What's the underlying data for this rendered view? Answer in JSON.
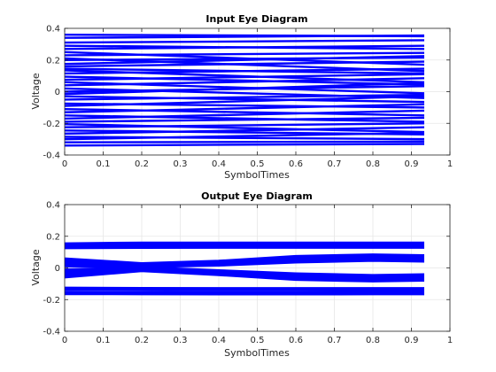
{
  "chart_data": [
    {
      "type": "line",
      "title": "Input Eye Diagram",
      "xlabel": "SymbolTimes",
      "ylabel": "Voltage",
      "xlim": [
        0,
        1
      ],
      "ylim": [
        -0.4,
        0.4
      ],
      "xticks": [
        "0",
        "0.1",
        "0.2",
        "0.3",
        "0.4",
        "0.5",
        "0.6",
        "0.7",
        "0.8",
        "0.9",
        "1"
      ],
      "yticks": [
        "0.4",
        "0.2",
        "0",
        "-0.2",
        "-0.4"
      ],
      "grid": true,
      "line_color": "#0000ff",
      "x": [
        0,
        0.9333
      ],
      "series": [
        {
          "values": [
            0.36,
            0.35
          ]
        },
        {
          "values": [
            0.34,
            0.355
          ]
        },
        {
          "values": [
            0.31,
            0.325
          ]
        },
        {
          "values": [
            0.29,
            0.27
          ]
        },
        {
          "values": [
            0.27,
            0.29
          ]
        },
        {
          "values": [
            0.25,
            0.17
          ]
        },
        {
          "values": [
            0.23,
            0.245
          ]
        },
        {
          "values": [
            0.21,
            0.13
          ]
        },
        {
          "values": [
            0.2,
            0.215
          ]
        },
        {
          "values": [
            0.175,
            0.225
          ]
        },
        {
          "values": [
            0.16,
            0.19
          ]
        },
        {
          "values": [
            0.145,
            0.115
          ]
        },
        {
          "values": [
            0.135,
            0.06
          ]
        },
        {
          "values": [
            0.115,
            0.145
          ]
        },
        {
          "values": [
            0.095,
            0.045
          ]
        },
        {
          "values": [
            0.075,
            0.11
          ]
        },
        {
          "values": [
            0.06,
            -0.01
          ]
        },
        {
          "values": [
            0.04,
            0.085
          ]
        },
        {
          "values": [
            0.02,
            -0.04
          ]
        },
        {
          "values": [
            0.0,
            0.035
          ]
        },
        {
          "values": [
            -0.015,
            0.055
          ]
        },
        {
          "values": [
            -0.03,
            -0.065
          ]
        },
        {
          "values": [
            -0.05,
            -0.02
          ]
        },
        {
          "values": [
            -0.075,
            -0.1
          ]
        },
        {
          "values": [
            -0.09,
            -0.03
          ]
        },
        {
          "values": [
            -0.11,
            -0.15
          ]
        },
        {
          "values": [
            -0.13,
            -0.08
          ]
        },
        {
          "values": [
            -0.15,
            -0.19
          ]
        },
        {
          "values": [
            -0.17,
            -0.12
          ]
        },
        {
          "values": [
            -0.19,
            -0.165
          ]
        },
        {
          "values": [
            -0.205,
            -0.255
          ]
        },
        {
          "values": [
            -0.225,
            -0.2
          ]
        },
        {
          "values": [
            -0.245,
            -0.27
          ]
        },
        {
          "values": [
            -0.265,
            -0.225
          ]
        },
        {
          "values": [
            -0.285,
            -0.3
          ]
        },
        {
          "values": [
            -0.3,
            -0.26
          ]
        },
        {
          "values": [
            -0.32,
            -0.315
          ]
        },
        {
          "values": [
            -0.34,
            -0.33
          ]
        }
      ]
    },
    {
      "type": "line",
      "title": "Output Eye Diagram",
      "xlabel": "SymbolTimes",
      "ylabel": "Voltage",
      "xlim": [
        0,
        1
      ],
      "ylim": [
        -0.4,
        0.4
      ],
      "xticks": [
        "0",
        "0.1",
        "0.2",
        "0.3",
        "0.4",
        "0.5",
        "0.6",
        "0.7",
        "0.8",
        "0.9",
        "1"
      ],
      "yticks": [
        "0.4",
        "0.2",
        "0",
        "-0.2",
        "-0.4"
      ],
      "grid": true,
      "line_color": "#0000ff",
      "x": [
        0,
        0.2,
        0.4,
        0.6,
        0.8,
        0.9333
      ],
      "series": [
        {
          "values": [
            0.155,
            0.16,
            0.16,
            0.16,
            0.16,
            0.16
          ]
        },
        {
          "values": [
            0.15,
            0.152,
            0.153,
            0.153,
            0.152,
            0.152
          ]
        },
        {
          "values": [
            0.142,
            0.144,
            0.146,
            0.146,
            0.145,
            0.145
          ]
        },
        {
          "values": [
            0.136,
            0.138,
            0.14,
            0.14,
            0.14,
            0.14
          ]
        },
        {
          "values": [
            0.13,
            0.132,
            0.133,
            0.134,
            0.134,
            0.134
          ]
        },
        {
          "values": [
            0.125,
            0.127,
            0.128,
            0.128,
            0.128,
            0.128
          ]
        },
        {
          "values": [
            0.06,
            0.03,
            0.045,
            0.075,
            0.085,
            0.08
          ]
        },
        {
          "values": [
            0.05,
            0.025,
            0.04,
            0.068,
            0.078,
            0.074
          ]
        },
        {
          "values": [
            0.04,
            0.02,
            0.035,
            0.06,
            0.07,
            0.066
          ]
        },
        {
          "values": [
            0.03,
            0.015,
            0.03,
            0.052,
            0.062,
            0.058
          ]
        },
        {
          "values": [
            0.02,
            0.01,
            0.025,
            0.045,
            0.055,
            0.05
          ]
        },
        {
          "values": [
            0.01,
            0.005,
            0.015,
            0.035,
            0.045,
            0.04
          ]
        },
        {
          "values": [
            -0.01,
            0.005,
            -0.015,
            -0.035,
            -0.045,
            -0.04
          ]
        },
        {
          "values": [
            -0.02,
            0.0,
            -0.025,
            -0.045,
            -0.055,
            -0.05
          ]
        },
        {
          "values": [
            -0.03,
            -0.005,
            -0.03,
            -0.052,
            -0.062,
            -0.058
          ]
        },
        {
          "values": [
            -0.04,
            -0.01,
            -0.035,
            -0.06,
            -0.07,
            -0.066
          ]
        },
        {
          "values": [
            -0.05,
            -0.015,
            -0.04,
            -0.068,
            -0.078,
            -0.074
          ]
        },
        {
          "values": [
            -0.06,
            -0.02,
            -0.045,
            -0.075,
            -0.085,
            -0.08
          ]
        },
        {
          "values": [
            -0.125,
            -0.127,
            -0.128,
            -0.128,
            -0.128,
            -0.128
          ]
        },
        {
          "values": [
            -0.13,
            -0.132,
            -0.133,
            -0.134,
            -0.134,
            -0.134
          ]
        },
        {
          "values": [
            -0.136,
            -0.138,
            -0.14,
            -0.14,
            -0.14,
            -0.14
          ]
        },
        {
          "values": [
            -0.15,
            -0.152,
            -0.153,
            -0.153,
            -0.152,
            -0.152
          ]
        },
        {
          "values": [
            -0.155,
            -0.158,
            -0.16,
            -0.16,
            -0.16,
            -0.16
          ]
        },
        {
          "values": [
            -0.165,
            -0.166,
            -0.167,
            -0.167,
            -0.166,
            -0.166
          ]
        }
      ]
    }
  ]
}
